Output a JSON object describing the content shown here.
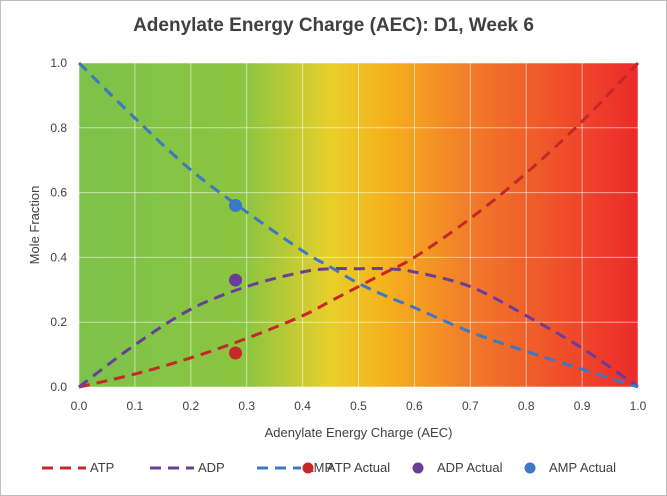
{
  "chart_data": {
    "type": "line",
    "title": "Adenylate Energy Charge (AEC): D1, Week 6",
    "xlabel": "Adenylate Energy Charge (AEC)",
    "ylabel": "Mole Fraction",
    "xlim": [
      0,
      1
    ],
    "ylim": [
      0,
      1
    ],
    "x_ticks": [
      "0.0",
      "0.1",
      "0.2",
      "0.3",
      "0.4",
      "0.5",
      "0.6",
      "0.7",
      "0.8",
      "0.9",
      "1.0"
    ],
    "y_ticks": [
      "0.0",
      "0.2",
      "0.4",
      "0.6",
      "0.8",
      "1.0"
    ],
    "grid": true,
    "background": "green-to-red gradient (green at low AEC, yellow near 0.5, red at high AEC)",
    "background_stops": [
      {
        "at": 0.0,
        "color": "#7cc24b"
      },
      {
        "at": 0.3,
        "color": "#8cc540"
      },
      {
        "at": 0.45,
        "color": "#e8cf2a"
      },
      {
        "at": 0.55,
        "color": "#f5b11d"
      },
      {
        "at": 0.7,
        "color": "#f27b2a"
      },
      {
        "at": 1.0,
        "color": "#ec2a2a"
      }
    ],
    "x": [
      0.0,
      0.1,
      0.2,
      0.3,
      0.4,
      0.45,
      0.5,
      0.55,
      0.6,
      0.7,
      0.8,
      0.9,
      1.0
    ],
    "series": [
      {
        "name": "ATP",
        "style": "dashed",
        "color": "#c62828",
        "values": [
          0.0,
          0.04,
          0.09,
          0.15,
          0.22,
          0.265,
          0.31,
          0.355,
          0.4,
          0.52,
          0.66,
          0.82,
          1.0
        ]
      },
      {
        "name": "ADP",
        "style": "dashed",
        "color": "#6a3d9a",
        "values": [
          0.0,
          0.13,
          0.24,
          0.31,
          0.355,
          0.365,
          0.365,
          0.365,
          0.355,
          0.31,
          0.22,
          0.12,
          0.0
        ]
      },
      {
        "name": "AMP",
        "style": "dashed",
        "color": "#3c78c3",
        "values": [
          1.0,
          0.83,
          0.67,
          0.54,
          0.42,
          0.37,
          0.32,
          0.28,
          0.245,
          0.17,
          0.11,
          0.055,
          0.0
        ]
      }
    ],
    "points": [
      {
        "name": "ATP Actual",
        "color": "#c62828",
        "x": 0.28,
        "y": 0.105
      },
      {
        "name": "ADP Actual",
        "color": "#6a3d9a",
        "x": 0.28,
        "y": 0.33
      },
      {
        "name": "AMP Actual",
        "color": "#3c78c3",
        "x": 0.28,
        "y": 0.56
      }
    ],
    "legend": {
      "position": "bottom",
      "items": [
        {
          "label": "ATP",
          "kind": "line",
          "color": "#c62828"
        },
        {
          "label": "ADP",
          "kind": "line",
          "color": "#6a3d9a"
        },
        {
          "label": "AMP",
          "kind": "line",
          "color": "#3c78c3"
        },
        {
          "label": "ATP Actual",
          "kind": "marker",
          "color": "#c62828"
        },
        {
          "label": "ADP Actual",
          "kind": "marker",
          "color": "#6a3d9a"
        },
        {
          "label": "AMP Actual",
          "kind": "marker",
          "color": "#3c78c3"
        }
      ]
    }
  }
}
